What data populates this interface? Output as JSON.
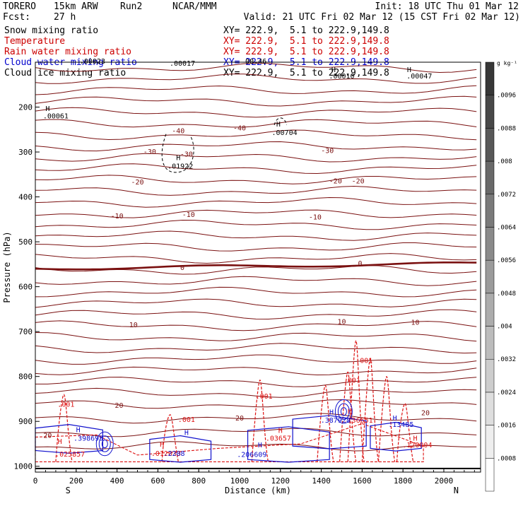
{
  "header": {
    "model": "TORERO",
    "config": "15km ARW",
    "run": "Run2",
    "org": "NCAR/MMM",
    "init": "Init: 18 UTC Thu 01 Mar 12",
    "fcst_label": "Fcst:",
    "fcst_value": "27 h",
    "valid": "Valid: 21 UTC Fri 02 Mar 12 (15 CST Fri 02 Mar 12)"
  },
  "fields": [
    {
      "name": "Snow mixing ratio",
      "xy": "XY= 222.9,  5.1 to 222.9,149.8",
      "color": "#000000"
    },
    {
      "name": "Temperature",
      "xy": "XY= 222.9,  5.1 to 222.9,149.8",
      "color": "#cc0000"
    },
    {
      "name": "Rain water mixing ratio",
      "xy": "XY= 222.9,  5.1 to 222.9,149.8",
      "color": "#cc0000"
    },
    {
      "name": "Cloud water mixing ratio",
      "xy": "XY= 222.9,  5.1 to 222.9,149.8",
      "color": "#0000cc"
    },
    {
      "name": "Cloud ice mixing ratio",
      "xy": "XY= 222.9,  5.1 to 222.9,149.8",
      "color": "#000000"
    }
  ],
  "colors": {
    "temperature": "#7a1010",
    "rain": "#dd1111",
    "cloud_water": "#1010cc",
    "ice_snow": "#000000"
  },
  "chart_data": {
    "type": "contour",
    "xlabel": "Distance (km)",
    "ylabel": "Pressure (hPa)",
    "x_start_label": "S",
    "x_end_label": "N",
    "xlim": [
      0,
      2180
    ],
    "ylim": [
      1013,
      100
    ],
    "xticks": [
      0,
      200,
      400,
      600,
      800,
      1000,
      1200,
      1400,
      1600,
      1800,
      2000
    ],
    "yticks": [
      200,
      300,
      400,
      500,
      600,
      700,
      800,
      900,
      1000
    ],
    "temperature_labels": [
      {
        "text": "-40",
        "x": 700,
        "p": 258
      },
      {
        "text": "-40",
        "x": 1000,
        "p": 252
      },
      {
        "text": "-30",
        "x": 560,
        "p": 305
      },
      {
        "text": "-30",
        "x": 740,
        "p": 310
      },
      {
        "text": "-30",
        "x": 1430,
        "p": 302
      },
      {
        "text": "-20",
        "x": 500,
        "p": 372
      },
      {
        "text": "-20",
        "x": 1470,
        "p": 370
      },
      {
        "text": "-20",
        "x": 1580,
        "p": 370
      },
      {
        "text": "-10",
        "x": 400,
        "p": 448
      },
      {
        "text": "-10",
        "x": 750,
        "p": 445
      },
      {
        "text": "-10",
        "x": 1370,
        "p": 450
      },
      {
        "text": "0",
        "x": 720,
        "p": 563
      },
      {
        "text": "0",
        "x": 1590,
        "p": 553
      },
      {
        "text": "10",
        "x": 480,
        "p": 690
      },
      {
        "text": "10",
        "x": 1500,
        "p": 683
      },
      {
        "text": "10",
        "x": 1860,
        "p": 685
      },
      {
        "text": "20",
        "x": 410,
        "p": 870
      },
      {
        "text": "20",
        "x": 1000,
        "p": 898
      },
      {
        "text": "20",
        "x": 1910,
        "p": 886
      },
      {
        "text": "20",
        "x": 60,
        "p": 937
      }
    ],
    "rain_labels": [
      {
        "text": ".001",
        "x": 150,
        "p": 867
      },
      {
        "text": ".001",
        "x": 740,
        "p": 901
      },
      {
        "text": ".001",
        "x": 1120,
        "p": 849
      },
      {
        "text": ".001",
        "x": 1550,
        "p": 814
      },
      {
        "text": ".001",
        "x": 1610,
        "p": 770
      },
      {
        "text": ".025857",
        "x": 170,
        "p": 978
      },
      {
        "text": ".012033",
        "x": 640,
        "p": 977
      },
      {
        "text": ".03657",
        "x": 1190,
        "p": 943
      },
      {
        "text": ".136651",
        "x": 1580,
        "p": 903
      },
      {
        "text": ".120004",
        "x": 1870,
        "p": 958
      }
    ],
    "cloud_water_labels": [
      {
        "text": ".398695",
        "x": 260,
        "p": 943
      },
      {
        "text": ".2208",
        "x": 680,
        "p": 977
      },
      {
        "text": ".206609",
        "x": 1060,
        "p": 979
      },
      {
        "text": ".387928",
        "x": 1470,
        "p": 903
      },
      {
        "text": ".13485",
        "x": 1790,
        "p": 912
      }
    ],
    "ice_snow_labels": [
      {
        "text": ".00023",
        "x": 280,
        "p": 103
      },
      {
        "text": ".00017",
        "x": 720,
        "p": 108
      },
      {
        "text": ".00010",
        "x": 1500,
        "p": 136
      },
      {
        "text": ".00047",
        "x": 1880,
        "p": 136
      },
      {
        "text": ".00061",
        "x": 100,
        "p": 225
      },
      {
        "text": ".00704",
        "x": 1220,
        "p": 262
      },
      {
        "text": ".01922",
        "x": 710,
        "p": 337
      },
      {
        "text": "00.46",
        "x": 1080,
        "p": 103
      }
    ],
    "ice_snow_highs": [
      {
        "x": 60,
        "p": 209
      },
      {
        "x": 1190,
        "p": 243
      },
      {
        "x": 700,
        "p": 318
      },
      {
        "x": 1830,
        "p": 122
      },
      {
        "x": 1460,
        "p": 122
      }
    ],
    "rain_highs": [
      {
        "x": 120,
        "p": 950
      },
      {
        "x": 620,
        "p": 956
      },
      {
        "x": 1200,
        "p": 926
      },
      {
        "x": 1540,
        "p": 883
      },
      {
        "x": 1860,
        "p": 943
      }
    ],
    "cloud_water_highs": [
      {
        "x": 210,
        "p": 924
      },
      {
        "x": 740,
        "p": 930
      },
      {
        "x": 1100,
        "p": 958
      },
      {
        "x": 1450,
        "p": 885
      },
      {
        "x": 1760,
        "p": 898
      }
    ],
    "colorbar": {
      "unit": "g kg⁻¹",
      "levels": [
        ".0008",
        ".0016",
        ".0024",
        ".0032",
        ".004",
        ".0048",
        ".0056",
        ".0064",
        ".0072",
        ".008",
        ".0088",
        ".0096"
      ]
    }
  }
}
